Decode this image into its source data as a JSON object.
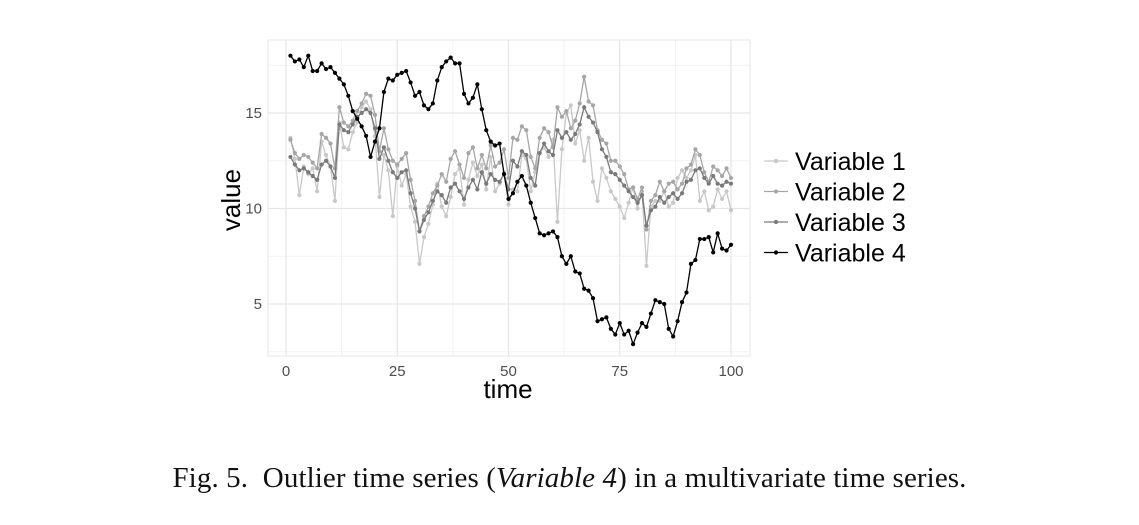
{
  "chart_data": {
    "type": "line",
    "title": "",
    "xlabel": "time",
    "ylabel": "value",
    "xlim": [
      -3,
      104
    ],
    "ylim": [
      2.3,
      18.5
    ],
    "x_ticks": [
      0,
      25,
      50,
      75,
      100
    ],
    "y_ticks": [
      5,
      10,
      15
    ],
    "grid": true,
    "legend_position": "right",
    "markers": true,
    "x": [
      1,
      2,
      3,
      4,
      5,
      6,
      7,
      8,
      9,
      10,
      11,
      12,
      13,
      14,
      15,
      16,
      17,
      18,
      19,
      20,
      21,
      22,
      23,
      24,
      25,
      26,
      27,
      28,
      29,
      30,
      31,
      32,
      33,
      34,
      35,
      36,
      37,
      38,
      39,
      40,
      41,
      42,
      43,
      44,
      45,
      46,
      47,
      48,
      49,
      50,
      51,
      52,
      53,
      54,
      55,
      56,
      57,
      58,
      59,
      60,
      61,
      62,
      63,
      64,
      65,
      66,
      67,
      68,
      69,
      70,
      71,
      72,
      73,
      74,
      75,
      76,
      77,
      78,
      79,
      80,
      81,
      82,
      83,
      84,
      85,
      86,
      87,
      88,
      89,
      90,
      91,
      92,
      93,
      94,
      95,
      96,
      97,
      98,
      99,
      100
    ],
    "series": [
      {
        "name": "Variable 1",
        "color": "#c8c8c8",
        "values": [
          13.7,
          12.6,
          10.7,
          12.2,
          11.8,
          12.1,
          10.9,
          13.5,
          12.8,
          12.2,
          10.4,
          14.5,
          13.2,
          13.1,
          14.0,
          14.5,
          15.3,
          15.6,
          15.2,
          13.8,
          10.6,
          12.8,
          12.0,
          9.6,
          12.2,
          11.2,
          11.8,
          10.1,
          9.3,
          7.1,
          8.5,
          9.2,
          10.2,
          11.3,
          10.1,
          9.6,
          10.6,
          11.8,
          12.1,
          10.2,
          11.5,
          12.4,
          11.7,
          12.3,
          11.0,
          12.7,
          10.9,
          11.3,
          11.9,
          10.2,
          11.0,
          10.9,
          12.8,
          12.6,
          10.9,
          11.9,
          12.9,
          13.2,
          12.7,
          13.6,
          9.3,
          13.1,
          15.0,
          15.4,
          13.4,
          14.1,
          12.5,
          13.7,
          11.4,
          10.4,
          12.1,
          11.6,
          10.9,
          10.5,
          10.1,
          9.5,
          10.3,
          11.1,
          10.0,
          10.9,
          7.0,
          10.1,
          10.4,
          10.4,
          10.9,
          10.1,
          10.3,
          11.6,
          12.0,
          11.6,
          12.0,
          12.8,
          10.4,
          10.9,
          9.9,
          10.1,
          11.0,
          10.5,
          10.9,
          9.9
        ]
      },
      {
        "name": "Variable 2",
        "color": "#a6a6a6",
        "values": [
          13.6,
          12.9,
          12.6,
          12.8,
          12.7,
          12.4,
          12.1,
          13.9,
          13.7,
          13.4,
          12.1,
          15.3,
          14.5,
          14.3,
          14.6,
          15.1,
          15.5,
          16.0,
          15.9,
          14.9,
          13.0,
          14.2,
          13.1,
          12.5,
          12.3,
          12.6,
          12.9,
          11.5,
          10.4,
          8.8,
          9.6,
          10.1,
          10.8,
          11.2,
          11.8,
          11.4,
          12.6,
          13.0,
          12.3,
          11.6,
          12.9,
          13.2,
          12.1,
          12.8,
          12.1,
          13.3,
          12.2,
          12.4,
          13.1,
          11.6,
          13.7,
          13.6,
          14.3,
          14.1,
          12.7,
          12.1,
          13.7,
          14.2,
          14.0,
          13.2,
          15.3,
          14.8,
          15.1,
          14.2,
          14.6,
          15.5,
          16.9,
          15.6,
          15.4,
          14.1,
          13.6,
          13.4,
          12.5,
          12.5,
          12.2,
          11.8,
          11.0,
          11.1,
          10.5,
          11.1,
          8.9,
          10.4,
          10.7,
          11.4,
          10.9,
          11.3,
          11.4,
          11.0,
          11.3,
          12.1,
          12.3,
          13.1,
          12.8,
          11.9,
          11.4,
          12.2,
          12.0,
          11.7,
          12.1,
          11.6
        ]
      },
      {
        "name": "Variable 3",
        "color": "#7a7a7a",
        "values": [
          12.7,
          12.3,
          12.0,
          12.1,
          11.9,
          11.7,
          11.5,
          12.3,
          12.5,
          12.2,
          11.6,
          14.4,
          14.1,
          14.0,
          14.4,
          14.8,
          15.0,
          15.2,
          15.0,
          14.2,
          12.6,
          13.2,
          12.5,
          11.9,
          11.6,
          11.9,
          12.0,
          10.8,
          10.0,
          8.8,
          9.4,
          9.8,
          10.4,
          10.9,
          10.7,
          10.3,
          11.1,
          11.3,
          10.9,
          10.5,
          11.1,
          11.5,
          11.0,
          11.9,
          11.3,
          11.8,
          11.5,
          11.4,
          11.8,
          11.0,
          12.5,
          12.2,
          13.0,
          12.8,
          11.6,
          11.2,
          12.9,
          13.4,
          13.0,
          12.8,
          14.1,
          13.7,
          14.0,
          13.6,
          13.9,
          14.4,
          15.3,
          14.8,
          14.5,
          14.0,
          13.1,
          12.7,
          11.9,
          11.8,
          11.5,
          11.2,
          10.9,
          10.6,
          10.3,
          10.7,
          9.1,
          9.9,
          10.1,
          10.6,
          10.3,
          10.6,
          10.8,
          10.5,
          10.8,
          11.4,
          11.5,
          12.0,
          12.1,
          11.6,
          11.3,
          11.7,
          11.3,
          11.2,
          11.4,
          11.3
        ]
      },
      {
        "name": "Variable 4",
        "color": "#000000",
        "values": [
          18.0,
          17.7,
          17.8,
          17.4,
          18.0,
          17.2,
          17.2,
          17.6,
          17.3,
          17.4,
          17.1,
          16.8,
          16.5,
          15.9,
          15.1,
          14.7,
          14.3,
          13.8,
          12.7,
          13.5,
          14.2,
          16.1,
          16.8,
          16.7,
          17.0,
          17.1,
          17.2,
          16.6,
          15.9,
          16.1,
          15.4,
          15.2,
          15.5,
          16.7,
          17.4,
          17.7,
          17.9,
          17.6,
          17.6,
          16.0,
          15.5,
          15.8,
          16.5,
          15.2,
          14.1,
          13.5,
          13.3,
          13.4,
          11.8,
          10.5,
          10.8,
          11.4,
          11.7,
          11.2,
          10.3,
          9.5,
          8.7,
          8.6,
          8.7,
          8.8,
          8.5,
          7.5,
          7.1,
          7.5,
          6.7,
          6.6,
          5.8,
          5.7,
          5.3,
          4.1,
          4.2,
          4.3,
          3.7,
          3.4,
          4.0,
          3.4,
          3.6,
          2.9,
          3.5,
          4.0,
          3.8,
          4.5,
          5.2,
          5.1,
          5.0,
          3.7,
          3.3,
          4.1,
          5.1,
          5.6,
          7.1,
          7.3,
          8.4,
          8.4,
          8.5,
          7.7,
          8.7,
          7.9,
          7.8,
          8.1
        ]
      }
    ]
  },
  "caption": {
    "prefix": "Fig. 5.",
    "text_before": "Outlier time series (",
    "emphasis": "Variable 4",
    "text_after": ") in a multivariate time series."
  }
}
